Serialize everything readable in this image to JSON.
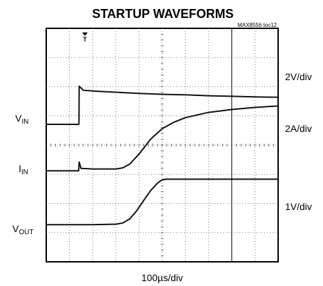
{
  "chart_data": {
    "type": "line",
    "title": "STARTUP WAVEFORMS",
    "reference": "MAX8556 toc12",
    "xlabel": "100µs/div",
    "x_range_div": [
      0,
      10
    ],
    "y_range_div": [
      0,
      8
    ],
    "grid": true,
    "trigger_marker": "T",
    "cursor_x_div": 8.0,
    "series": [
      {
        "name": "VIN",
        "label_main": "V",
        "label_sub": "IN",
        "scale": "2V/div",
        "points": [
          [
            0,
            4.71
          ],
          [
            1.4,
            4.71
          ],
          [
            1.41,
            4.73
          ],
          [
            1.42,
            6.02
          ],
          [
            1.6,
            5.88
          ],
          [
            2,
            5.85
          ],
          [
            3,
            5.81
          ],
          [
            4,
            5.77
          ],
          [
            5,
            5.74
          ],
          [
            6,
            5.72
          ],
          [
            7,
            5.69
          ],
          [
            8,
            5.67
          ],
          [
            9,
            5.65
          ],
          [
            10,
            5.64
          ]
        ]
      },
      {
        "name": "IIN",
        "label_main": "I",
        "label_sub": "IN",
        "scale": "2A/div",
        "points": [
          [
            0,
            3.12
          ],
          [
            1.4,
            3.12
          ],
          [
            1.42,
            3.42
          ],
          [
            1.5,
            3.2
          ],
          [
            2,
            3.18
          ],
          [
            3,
            3.18
          ],
          [
            3.3,
            3.22
          ],
          [
            3.6,
            3.35
          ],
          [
            4,
            3.69
          ],
          [
            4.5,
            4.2
          ],
          [
            5,
            4.56
          ],
          [
            5.5,
            4.78
          ],
          [
            6,
            4.94
          ],
          [
            7,
            5.12
          ],
          [
            8,
            5.22
          ],
          [
            9,
            5.29
          ],
          [
            10,
            5.34
          ]
        ]
      },
      {
        "name": "VOUT",
        "label_main": "V",
        "label_sub": "OUT",
        "scale": "1V/div",
        "points": [
          [
            0,
            1.27
          ],
          [
            2,
            1.27
          ],
          [
            3,
            1.29
          ],
          [
            3.3,
            1.33
          ],
          [
            3.6,
            1.47
          ],
          [
            3.9,
            1.75
          ],
          [
            4.2,
            2.1
          ],
          [
            4.5,
            2.44
          ],
          [
            4.8,
            2.7
          ],
          [
            5,
            2.81
          ],
          [
            5.2,
            2.83
          ],
          [
            6,
            2.83
          ],
          [
            7,
            2.83
          ],
          [
            8,
            2.83
          ],
          [
            10,
            2.83
          ]
        ]
      }
    ]
  }
}
